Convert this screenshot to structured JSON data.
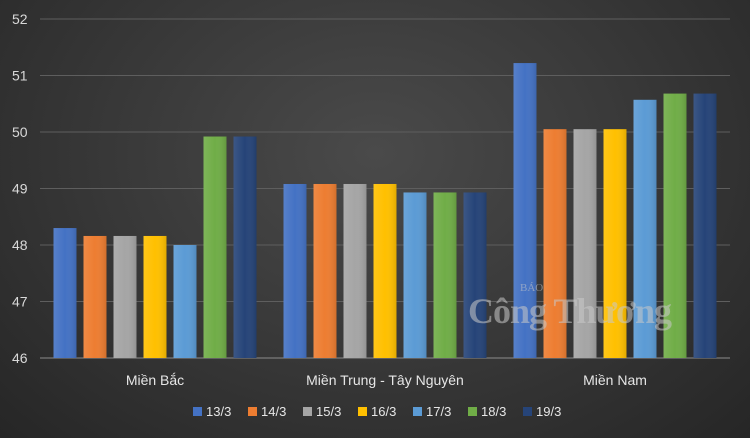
{
  "chart_data": {
    "type": "bar",
    "categories": [
      "Miền Bắc",
      "Miền Trung - Tây Nguyên",
      "Miền Nam"
    ],
    "series": [
      {
        "name": "13/3",
        "color": "#4472c4",
        "values": [
          48.3,
          49.08,
          51.22
        ]
      },
      {
        "name": "14/3",
        "color": "#ed7d31",
        "values": [
          48.16,
          49.08,
          50.05
        ]
      },
      {
        "name": "15/3",
        "color": "#a5a5a5",
        "values": [
          48.16,
          49.08,
          50.05
        ]
      },
      {
        "name": "16/3",
        "color": "#ffc000",
        "values": [
          48.16,
          49.08,
          50.05
        ]
      },
      {
        "name": "17/3",
        "color": "#5b9bd5",
        "values": [
          48.0,
          48.93,
          50.57
        ]
      },
      {
        "name": "18/3",
        "color": "#70ad47",
        "values": [
          49.92,
          48.93,
          50.68
        ]
      },
      {
        "name": "19/3",
        "color": "#264478",
        "values": [
          49.92,
          48.93,
          50.68
        ]
      }
    ],
    "ylim": [
      46,
      52
    ],
    "yticks": [
      "46",
      "47",
      "48",
      "49",
      "50",
      "51",
      "52"
    ],
    "grid": true,
    "legend_position": "bottom",
    "title": "",
    "xlabel": "",
    "ylabel": ""
  },
  "watermark": {
    "small_text": "BÁO",
    "big_text": "Công Thương"
  }
}
